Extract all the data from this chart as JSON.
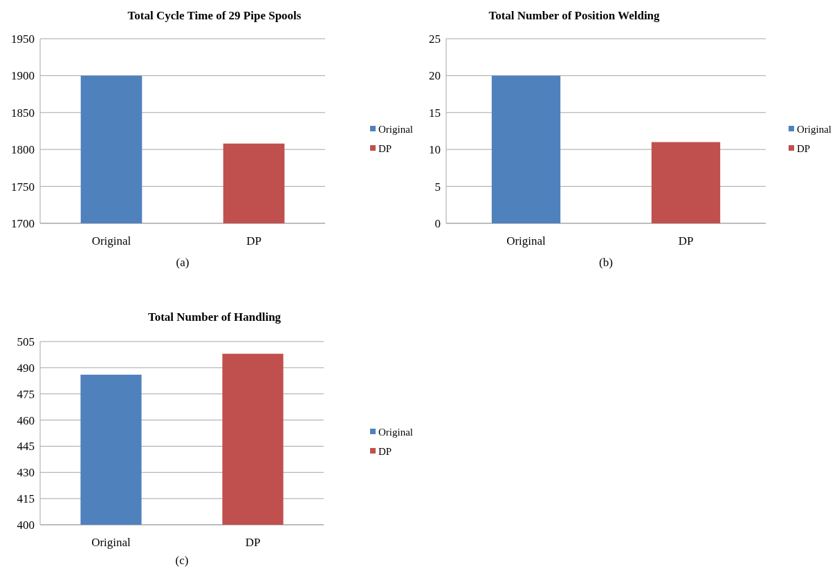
{
  "chart_data": [
    {
      "type": "bar",
      "title": "Total Cycle Time of 29 Pipe Spools",
      "categories": [
        "Original",
        "DP"
      ],
      "series": [
        {
          "name": "Original",
          "color": "#4f81bd",
          "values": [
            1900,
            null
          ]
        },
        {
          "name": "DP",
          "color": "#c0504d",
          "values": [
            null,
            1808
          ]
        }
      ],
      "ylim": [
        1700,
        1950
      ],
      "yticks": [
        1700,
        1750,
        1800,
        1850,
        1900,
        1950
      ],
      "grid": "y",
      "legend": "right",
      "annotations": [
        "(a)"
      ]
    },
    {
      "type": "bar",
      "title": "Total Number of Position Welding",
      "categories": [
        "Original",
        "DP"
      ],
      "series": [
        {
          "name": "Original",
          "color": "#4f81bd",
          "values": [
            20,
            null
          ]
        },
        {
          "name": "DP",
          "color": "#c0504d",
          "values": [
            null,
            11
          ]
        }
      ],
      "ylim": [
        0,
        25
      ],
      "yticks": [
        0,
        5,
        10,
        15,
        20,
        25
      ],
      "grid": "y",
      "legend": "right",
      "annotations": [
        "(b)"
      ]
    },
    {
      "type": "bar",
      "title": "Total Number of Handling",
      "categories": [
        "Original",
        "DP"
      ],
      "series": [
        {
          "name": "Original",
          "color": "#4f81bd",
          "values": [
            486,
            null
          ]
        },
        {
          "name": "DP",
          "color": "#c0504d",
          "values": [
            null,
            498
          ]
        }
      ],
      "ylim": [
        400,
        505
      ],
      "yticks": [
        400,
        415,
        430,
        445,
        460,
        475,
        490,
        505
      ],
      "grid": "y",
      "legend": "right",
      "annotations": [
        "(c)"
      ]
    }
  ]
}
